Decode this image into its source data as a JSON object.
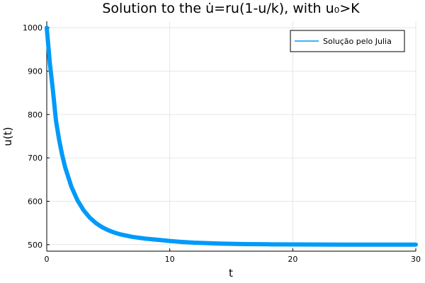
{
  "chart_data": {
    "type": "line",
    "title": "Solution to the u̇=ru(1-u/k), with u₀>K",
    "xlabel": "t",
    "ylabel": "u(t)",
    "xlim": [
      0,
      30
    ],
    "ylim": [
      485,
      1015
    ],
    "xticks": [
      0,
      10,
      20,
      30
    ],
    "yticks": [
      500,
      600,
      700,
      800,
      900,
      1000
    ],
    "grid": true,
    "legend_position": "top-right",
    "series": [
      {
        "name": "Solução pelo Julia",
        "color": "#009af9",
        "x": [
          0,
          0.25,
          0.5,
          0.75,
          1,
          1.25,
          1.5,
          2,
          2.5,
          3,
          3.5,
          4,
          4.5,
          5,
          5.5,
          6,
          7,
          8,
          9,
          10,
          11,
          12,
          14,
          16,
          18,
          20,
          22,
          24,
          26,
          28,
          30
        ],
        "y": [
          1000,
          918.7,
          856.0,
          785.6,
          742.6,
          707.0,
          677.9,
          633.7,
          602.1,
          579.1,
          562.2,
          549.7,
          540.3,
          533.2,
          527.8,
          523.6,
          517.7,
          514.0,
          511.3,
          508.4,
          506.2,
          504.5,
          502.5,
          501.4,
          500.8,
          500.4,
          500.2,
          500.1,
          500.1,
          500.0,
          500.0
        ]
      }
    ]
  }
}
